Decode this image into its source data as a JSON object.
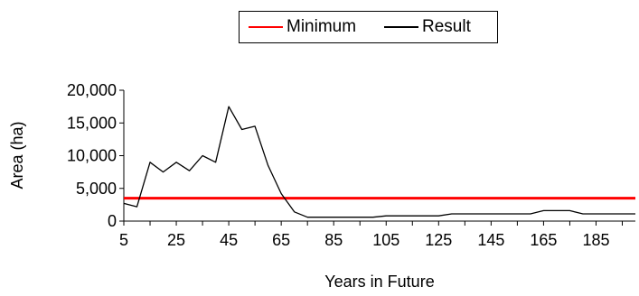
{
  "chart_data": {
    "type": "line",
    "xlabel": "Years in Future",
    "ylabel": "Area (ha)",
    "x_ticks": [
      5,
      25,
      45,
      65,
      85,
      105,
      125,
      145,
      165,
      185
    ],
    "x_tick_labels": [
      "5",
      "25",
      "45",
      "65",
      "85",
      "105",
      "125",
      "145",
      "165",
      "185"
    ],
    "y_ticks": [
      0,
      5000,
      10000,
      15000,
      20000
    ],
    "y_tick_labels": [
      "0",
      "5,000",
      "10,000",
      "15,000",
      "20,000"
    ],
    "xlim": [
      5,
      200
    ],
    "ylim": [
      0,
      20000
    ],
    "grid": false,
    "legend_position": "top",
    "series": [
      {
        "name": "Minimum",
        "color": "#ff0000",
        "x": [
          5,
          200
        ],
        "y": [
          3500,
          3500
        ]
      },
      {
        "name": "Result",
        "color": "#000000",
        "x": [
          5,
          10,
          15,
          20,
          25,
          30,
          35,
          40,
          45,
          50,
          55,
          60,
          65,
          70,
          75,
          80,
          85,
          90,
          95,
          100,
          105,
          110,
          115,
          120,
          125,
          130,
          135,
          140,
          145,
          150,
          155,
          160,
          165,
          170,
          175,
          180,
          185,
          190,
          195,
          200
        ],
        "y": [
          2700,
          2200,
          9000,
          7500,
          9000,
          7700,
          10000,
          9000,
          17500,
          14000,
          14500,
          8500,
          4200,
          1400,
          600,
          600,
          600,
          600,
          600,
          600,
          800,
          800,
          800,
          800,
          800,
          1100,
          1100,
          1100,
          1100,
          1100,
          1100,
          1100,
          1600,
          1600,
          1600,
          1100,
          1100,
          1100,
          1100,
          1100
        ]
      }
    ]
  }
}
